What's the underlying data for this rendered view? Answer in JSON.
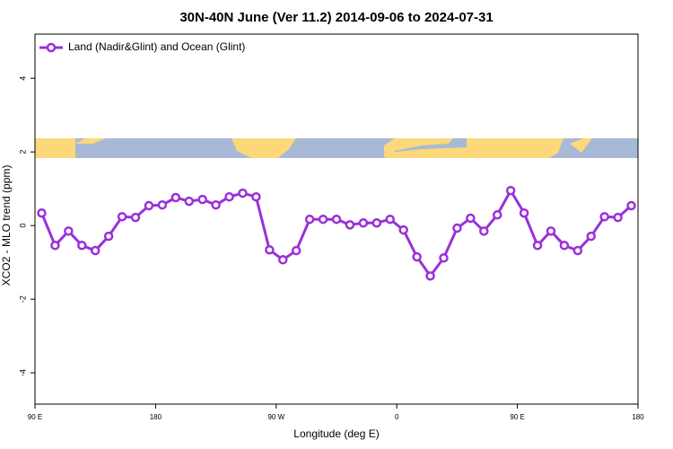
{
  "chart_data": {
    "type": "line",
    "title": "30N-40N June (Ver 11.2)   2014-09-06 to 2024-07-31",
    "xlabel": "Longitude (deg E)",
    "ylabel": "XCO2 - MLO trend (ppm)",
    "x": [
      95,
      105,
      115,
      125,
      135,
      145,
      155,
      165,
      175,
      185,
      195,
      205,
      215,
      225,
      235,
      245,
      255,
      265,
      275,
      285,
      295,
      305,
      315,
      325,
      335,
      345,
      355,
      365,
      375,
      385,
      395,
      405,
      415,
      425,
      435,
      445,
      455,
      465,
      475,
      485,
      495,
      505,
      515,
      525,
      535
    ],
    "series": [
      {
        "name": "Land (Nadir&Glint) and Ocean (Glint)",
        "color": "#9b30d9",
        "values": [
          0.34,
          -0.54,
          -0.15,
          -0.54,
          -0.68,
          -0.29,
          0.24,
          0.22,
          0.54,
          0.56,
          0.76,
          0.66,
          0.71,
          0.56,
          0.78,
          0.88,
          0.78,
          -0.66,
          -0.93,
          -0.68,
          0.17,
          0.17,
          0.17,
          0.02,
          0.07,
          0.07,
          0.17,
          -0.12,
          -0.85,
          -1.37,
          -0.88,
          -0.07,
          0.2,
          -0.15,
          0.29,
          0.95,
          0.34,
          -0.54,
          -0.15,
          -0.54,
          -0.68,
          -0.29,
          0.24,
          0.22,
          0.54
        ]
      }
    ],
    "xlim": [
      90,
      540
    ],
    "xticks": [
      {
        "value": 90,
        "label": "90 E"
      },
      180,
      {
        "value": 270,
        "label": "90 W"
      },
      {
        "value": 360,
        "label": "0"
      },
      {
        "value": 450,
        "label": "90 E"
      },
      {
        "value": 540,
        "label": "180"
      }
    ],
    "ylim": [
      -4.85,
      5.2
    ],
    "yticks": [
      -4,
      -2,
      0,
      2,
      4
    ],
    "legend": "top-left"
  }
}
